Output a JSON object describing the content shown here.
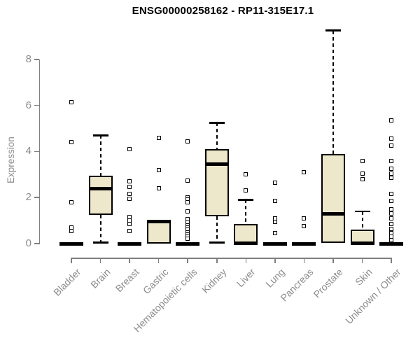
{
  "chart_data": {
    "type": "boxplot",
    "title": "ENSG00000258162 - RP11-315E17.1",
    "ylabel": "Expression",
    "xlabel": "",
    "ylim": [
      0,
      9.4
    ],
    "yticks": [
      "0",
      "2",
      "4",
      "6",
      "8"
    ],
    "grid": false,
    "legend": false,
    "categories": [
      "Bladder",
      "Brain",
      "Breast",
      "Gastric",
      "Hematopoietic cells",
      "Kidney",
      "Liver",
      "Lung",
      "Pancreas",
      "Prostate",
      "Skin",
      "Unknown / Other"
    ],
    "boxes": [
      {
        "category": "Bladder",
        "min": 0,
        "q1": 0,
        "median": 0,
        "q3": 0.05,
        "max": 0.05,
        "outliers": [
          6.15,
          4.4,
          1.8,
          0.7,
          0.55
        ]
      },
      {
        "category": "Brain",
        "min": 0.05,
        "q1": 1.25,
        "median": 2.4,
        "q3": 2.95,
        "max": 4.7,
        "outliers": []
      },
      {
        "category": "Breast",
        "min": 0,
        "q1": 0,
        "median": 0,
        "q3": 0.05,
        "max": 0.05,
        "outliers": [
          4.1,
          2.7,
          2.45,
          2.15,
          1.95,
          1.15,
          1.0,
          0.85,
          0.55
        ]
      },
      {
        "category": "Gastric",
        "min": 0,
        "q1": 0,
        "median": 0.95,
        "q3": 1.0,
        "max": 1.05,
        "outliers": [
          4.6,
          3.2,
          2.4
        ]
      },
      {
        "category": "Hematopoietic cells",
        "min": 0,
        "q1": 0,
        "median": 0,
        "q3": 0.05,
        "max": 0.05,
        "outliers": [
          4.45,
          2.75,
          2.0,
          1.9,
          1.8,
          1.4,
          1.05,
          0.9,
          0.8,
          0.7,
          0.6,
          0.5,
          0.4,
          0.3,
          0.2
        ]
      },
      {
        "category": "Kidney",
        "min": 0.05,
        "q1": 1.2,
        "median": 3.45,
        "q3": 4.1,
        "max": 5.25,
        "outliers": []
      },
      {
        "category": "Liver",
        "min": 0,
        "q1": 0,
        "median": 0.02,
        "q3": 0.85,
        "max": 1.9,
        "outliers": [
          3.0,
          2.3
        ]
      },
      {
        "category": "Lung",
        "min": 0,
        "q1": 0,
        "median": 0,
        "q3": 0.05,
        "max": 0.05,
        "outliers": [
          2.65,
          1.85,
          1.1,
          0.95,
          0.45
        ]
      },
      {
        "category": "Pancreas",
        "min": 0,
        "q1": 0,
        "median": 0,
        "q3": 0.05,
        "max": 0.05,
        "outliers": [
          3.1,
          1.1,
          0.75
        ]
      },
      {
        "category": "Prostate",
        "min": 0,
        "q1": 0.02,
        "median": 1.3,
        "q3": 3.9,
        "max": 9.25,
        "outliers": []
      },
      {
        "category": "Skin",
        "min": 0,
        "q1": 0,
        "median": 0.02,
        "q3": 0.6,
        "max": 1.4,
        "outliers": [
          3.6,
          3.05,
          2.8
        ]
      },
      {
        "category": "Unknown / Other",
        "min": 0,
        "q1": 0,
        "median": 0,
        "q3": 0.05,
        "max": 0.05,
        "outliers": [
          5.35,
          4.55,
          4.25,
          3.6,
          3.25,
          3.05,
          2.85,
          2.15,
          1.85,
          1.5,
          1.3,
          1.1,
          0.85,
          0.65,
          0.45,
          0.3,
          0.15
        ]
      }
    ],
    "colors": {
      "box_fill": "#EDE7CB",
      "box_stroke": "#000000",
      "axis": "#7F7F7F",
      "tick_label": "#8C8C8C",
      "title": "#000000"
    }
  }
}
